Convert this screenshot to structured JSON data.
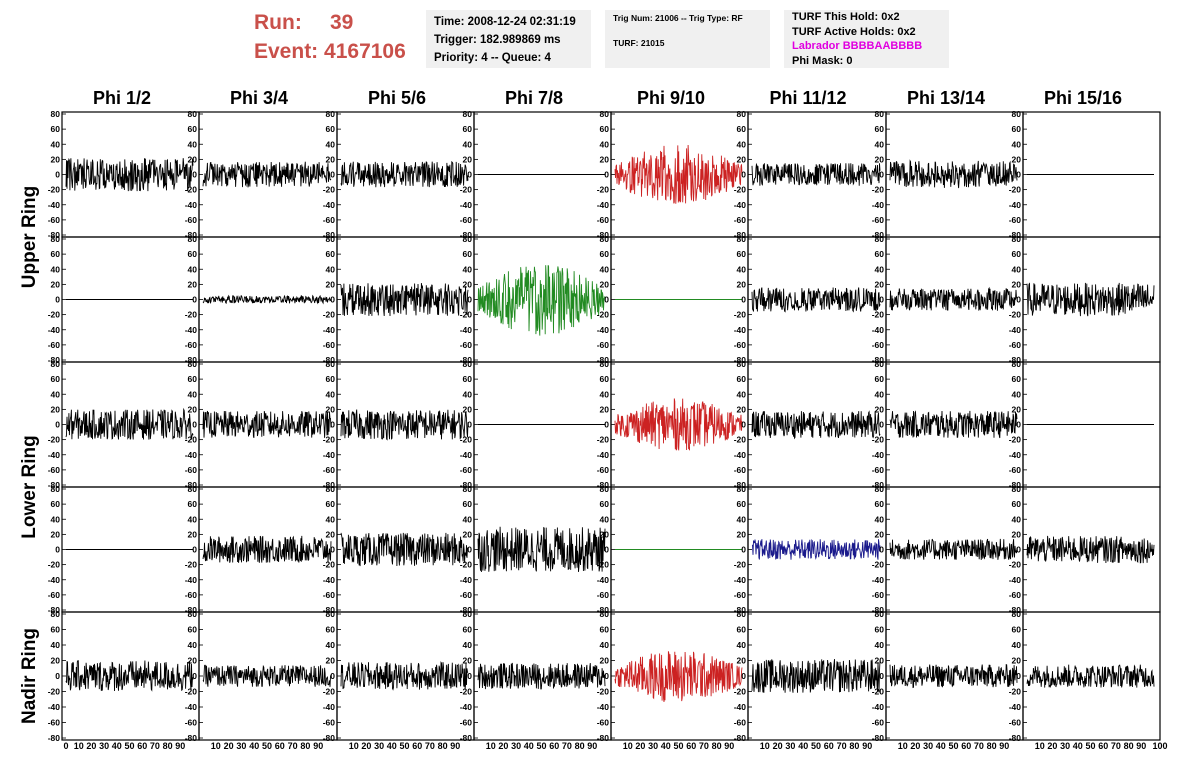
{
  "header": {
    "run_label": "Run:",
    "run_value": "39",
    "event_label": "Event:",
    "event_value": "4167106"
  },
  "info_time": {
    "time": "Time: 2008-12-24 02:31:19",
    "trigger": "Trigger: 182.989869 ms",
    "priority": "Priority: 4 -- Queue: 4"
  },
  "info_trig": {
    "trig_num": "Trig Num: 21006 -- Trig Type: RF",
    "turf": "TURF: 21015"
  },
  "info_turf": {
    "this_hold": "TURF This Hold: 0x2",
    "active_holds": "TURF Active Holds: 0x2",
    "labrador": "Labrador BBBBAABBBB",
    "phi_mask": "Phi Mask: 0"
  },
  "columns": [
    "Phi 1/2",
    "Phi 3/4",
    "Phi 5/6",
    "Phi 7/8",
    "Phi 9/10",
    "Phi 11/12",
    "Phi 13/14",
    "Phi 15/16"
  ],
  "row_labels": [
    "Upper Ring",
    "Lower Ring",
    "Nadir Ring"
  ],
  "axis": {
    "y_ticks": [
      "80",
      "60",
      "40",
      "20",
      "0",
      "-20",
      "-40",
      "-60",
      "-80"
    ],
    "x_ticks_first": [
      "0",
      "10",
      "20",
      "30",
      "40",
      "50",
      "60",
      "70",
      "80",
      "90"
    ],
    "x_ticks_rest": [
      "10",
      "20",
      "30",
      "40",
      "50",
      "60",
      "70",
      "80",
      "90"
    ],
    "x_end": "100"
  },
  "colors": {
    "run_text": "#c9504a",
    "labrador_text": "#e000e0",
    "trace_default": "#000000",
    "trace_red": "#cc2222",
    "trace_green": "#228b22",
    "trace_blue": "#1a1a8c"
  },
  "chart_data": {
    "type": "line",
    "ylim": [
      -80,
      80
    ],
    "xlim": [
      0,
      100
    ],
    "panels": [
      [
        {
          "color": "black",
          "amp": 22,
          "flat": false
        },
        {
          "color": "black",
          "amp": 17,
          "flat": false
        },
        {
          "color": "black",
          "amp": 17,
          "flat": false
        },
        {
          "color": "black",
          "amp": 0,
          "flat": true
        },
        {
          "color": "red",
          "amp": 40,
          "flat": false
        },
        {
          "color": "black",
          "amp": 15,
          "flat": false
        },
        {
          "color": "black",
          "amp": 18,
          "flat": false
        },
        {
          "color": "black",
          "amp": 0,
          "flat": true
        }
      ],
      [
        {
          "color": "black",
          "amp": 0,
          "flat": true
        },
        {
          "color": "black",
          "amp": 5,
          "flat": false
        },
        {
          "color": "black",
          "amp": 22,
          "flat": false
        },
        {
          "color": "green",
          "amp": 48,
          "flat": false
        },
        {
          "color": "green",
          "amp": 0,
          "flat": true
        },
        {
          "color": "black",
          "amp": 16,
          "flat": false
        },
        {
          "color": "black",
          "amp": 15,
          "flat": false
        },
        {
          "color": "black",
          "amp": 22,
          "flat": false
        }
      ],
      [
        {
          "color": "black",
          "amp": 20,
          "flat": false
        },
        {
          "color": "black",
          "amp": 18,
          "flat": false
        },
        {
          "color": "black",
          "amp": 20,
          "flat": false
        },
        {
          "color": "black",
          "amp": 0,
          "flat": true
        },
        {
          "color": "red",
          "amp": 35,
          "flat": false
        },
        {
          "color": "black",
          "amp": 18,
          "flat": false
        },
        {
          "color": "black",
          "amp": 18,
          "flat": false
        },
        {
          "color": "black",
          "amp": 0,
          "flat": true
        }
      ],
      [
        {
          "color": "black",
          "amp": 0,
          "flat": true
        },
        {
          "color": "black",
          "amp": 18,
          "flat": false
        },
        {
          "color": "black",
          "amp": 22,
          "flat": false
        },
        {
          "color": "black",
          "amp": 30,
          "flat": false
        },
        {
          "color": "green",
          "amp": 0,
          "flat": true
        },
        {
          "color": "blue",
          "amp": 14,
          "flat": false
        },
        {
          "color": "black",
          "amp": 14,
          "flat": false
        },
        {
          "color": "black",
          "amp": 18,
          "flat": false
        }
      ],
      [
        {
          "color": "black",
          "amp": 20,
          "flat": false
        },
        {
          "color": "black",
          "amp": 14,
          "flat": false
        },
        {
          "color": "black",
          "amp": 18,
          "flat": false
        },
        {
          "color": "black",
          "amp": 17,
          "flat": false
        },
        {
          "color": "red",
          "amp": 35,
          "flat": false
        },
        {
          "color": "black",
          "amp": 22,
          "flat": false
        },
        {
          "color": "black",
          "amp": 15,
          "flat": false
        },
        {
          "color": "black",
          "amp": 15,
          "flat": false
        }
      ]
    ]
  }
}
